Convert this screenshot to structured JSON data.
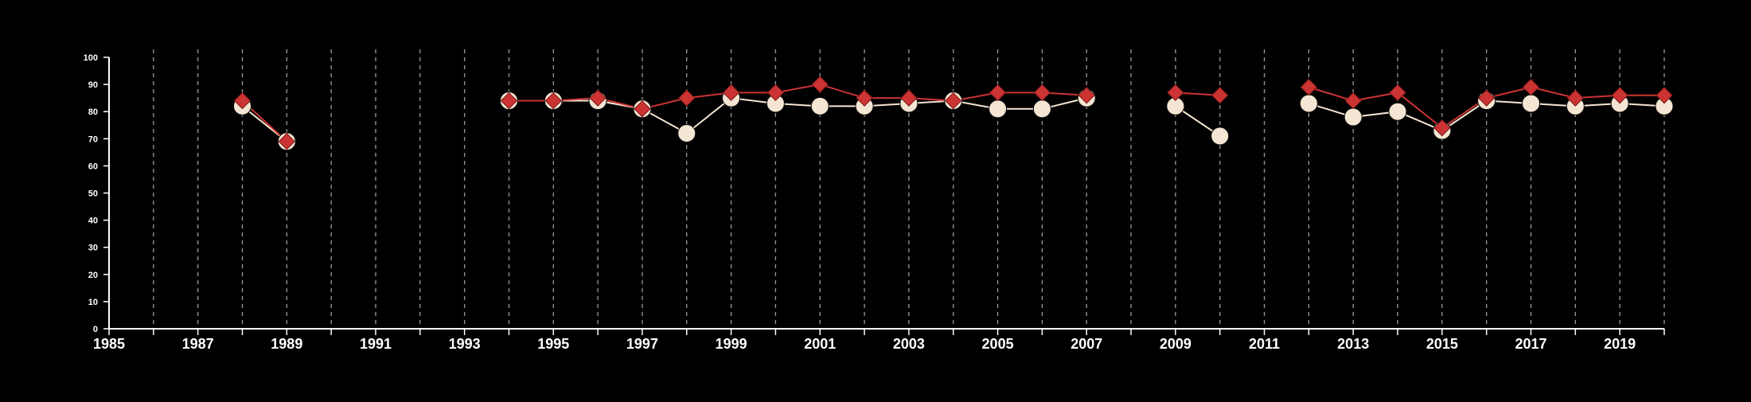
{
  "chart_data": {
    "type": "line",
    "title": "",
    "xlabel": "",
    "ylabel": "",
    "xlim": [
      1985,
      2020
    ],
    "ylim": [
      0,
      100
    ],
    "x_ticks": [
      1985,
      1986,
      1987,
      1988,
      1989,
      1990,
      1991,
      1992,
      1993,
      1994,
      1995,
      1996,
      1997,
      1998,
      1999,
      2000,
      2001,
      2002,
      2003,
      2004,
      2005,
      2006,
      2007,
      2008,
      2009,
      2010,
      2011,
      2012,
      2013,
      2014,
      2015,
      2016,
      2017,
      2018,
      2019,
      2020
    ],
    "x_tick_labels": [
      "1985",
      "1987",
      "1989",
      "1991",
      "1993",
      "1995",
      "1997",
      "1999",
      "2001",
      "2003",
      "2005",
      "2007",
      "2009",
      "2011",
      "2013",
      "2015",
      "2017",
      "2019"
    ],
    "y_ticks": [
      0,
      10,
      20,
      30,
      40,
      50,
      60,
      70,
      80,
      90,
      100
    ],
    "y_tick_labels": [
      "0",
      "10",
      "20",
      "30",
      "40",
      "50",
      "60",
      "70",
      "80",
      "90",
      "100"
    ],
    "grid": {
      "vertical": true,
      "horizontal": false,
      "style": "dashed"
    },
    "colors": {
      "background": "#000000",
      "axis": "#ffffff",
      "grid": "#9a9a9a",
      "series_1": "#f5e6d3",
      "series_2": "#cc3333"
    },
    "series": [
      {
        "marker": "circle",
        "color": "#f5e6d3",
        "segments": [
          [
            [
              1988,
              82
            ],
            [
              1989,
              69
            ]
          ],
          [
            [
              1994,
              84
            ],
            [
              1995,
              84
            ],
            [
              1996,
              84
            ],
            [
              1997,
              81
            ],
            [
              1998,
              72
            ],
            [
              1999,
              85
            ],
            [
              2000,
              83
            ],
            [
              2001,
              82
            ],
            [
              2002,
              82
            ],
            [
              2003,
              83
            ],
            [
              2004,
              84
            ],
            [
              2005,
              81
            ],
            [
              2006,
              81
            ],
            [
              2007,
              85
            ]
          ],
          [
            [
              2009,
              82
            ],
            [
              2010,
              71
            ]
          ],
          [
            [
              2012,
              83
            ],
            [
              2013,
              78
            ],
            [
              2014,
              80
            ],
            [
              2015,
              73
            ],
            [
              2016,
              84
            ],
            [
              2017,
              83
            ],
            [
              2018,
              82
            ],
            [
              2019,
              83
            ],
            [
              2020,
              82
            ]
          ]
        ]
      },
      {
        "marker": "diamond",
        "color": "#cc3333",
        "segments": [
          [
            [
              1988,
              84
            ],
            [
              1989,
              69
            ]
          ],
          [
            [
              1994,
              84
            ],
            [
              1995,
              84
            ],
            [
              1996,
              85
            ],
            [
              1997,
              81
            ],
            [
              1998,
              85
            ],
            [
              1999,
              87
            ],
            [
              2000,
              87
            ],
            [
              2001,
              90
            ],
            [
              2002,
              85
            ],
            [
              2003,
              85
            ],
            [
              2004,
              84
            ],
            [
              2005,
              87
            ],
            [
              2006,
              87
            ],
            [
              2007,
              86
            ]
          ],
          [
            [
              2009,
              87
            ],
            [
              2010,
              86
            ]
          ],
          [
            [
              2012,
              89
            ],
            [
              2013,
              84
            ],
            [
              2014,
              87
            ],
            [
              2015,
              74
            ],
            [
              2016,
              85
            ],
            [
              2017,
              89
            ],
            [
              2018,
              85
            ],
            [
              2019,
              86
            ],
            [
              2020,
              86
            ]
          ]
        ]
      }
    ]
  }
}
